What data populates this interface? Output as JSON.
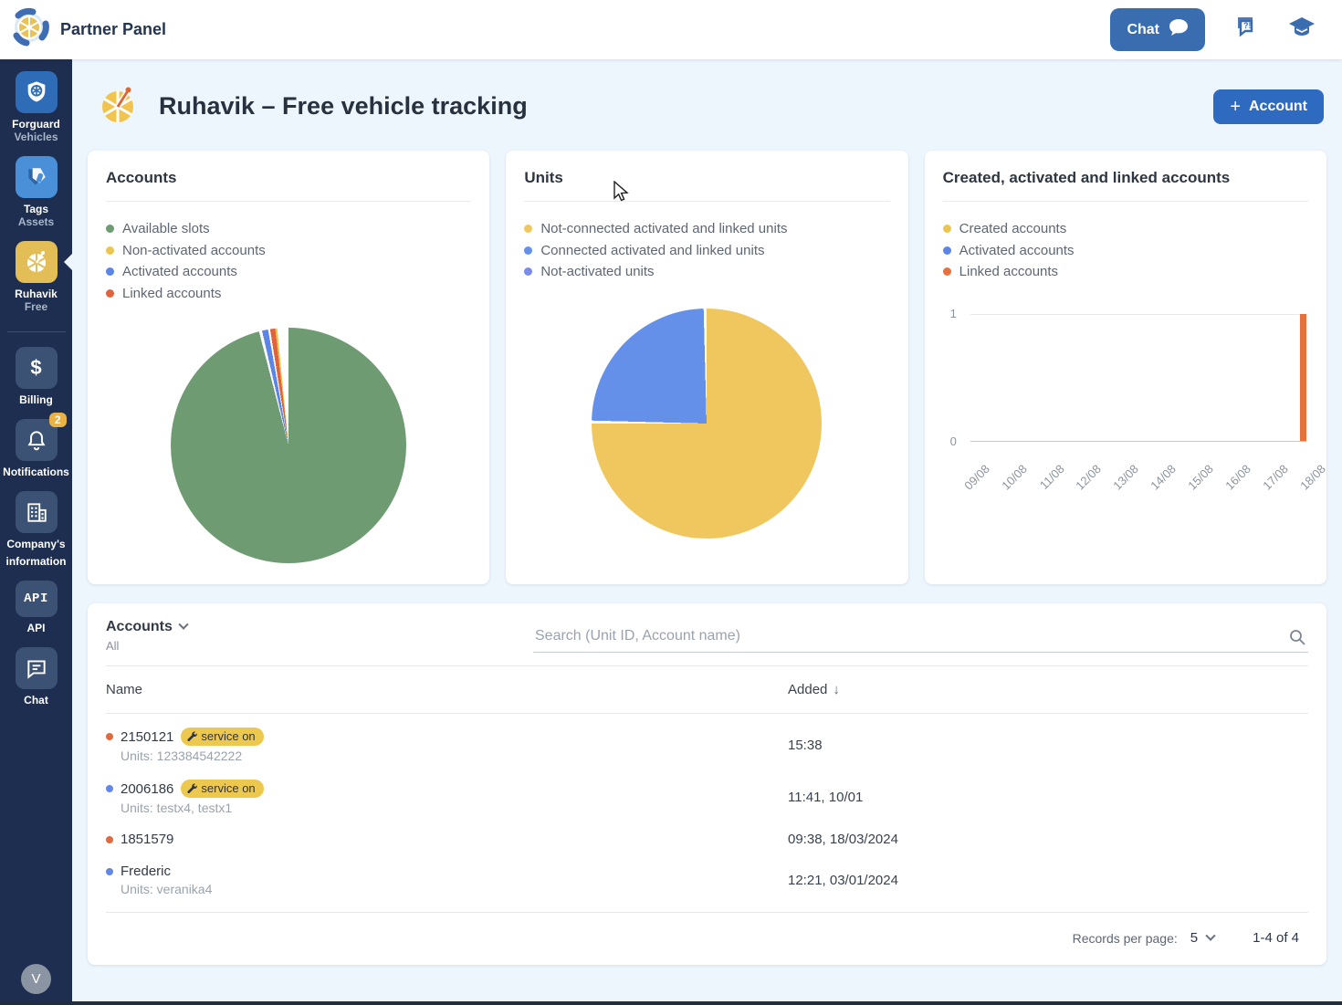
{
  "topbar": {
    "app_title": "Partner Panel",
    "chat_label": "Chat"
  },
  "sidebar": {
    "items": [
      {
        "label1": "Forguard",
        "label2": "Vehicles"
      },
      {
        "label1": "Tags",
        "label2": "Assets"
      },
      {
        "label1": "Ruhavik",
        "label2": "Free",
        "selected": true
      },
      {
        "label1": "Billing"
      },
      {
        "label1": "Notifications",
        "badge": "2"
      },
      {
        "label1": "Company's",
        "label2": "information"
      },
      {
        "label1": "API"
      },
      {
        "label1": "Chat"
      }
    ],
    "avatar_initial": "V"
  },
  "header": {
    "title": "Ruhavik – Free vehicle tracking",
    "account_label": "Account"
  },
  "cards": {
    "accounts": {
      "title": "Accounts",
      "legend": [
        {
          "label": "Available slots",
          "color": "#6f9b72"
        },
        {
          "label": "Non-activated accounts",
          "color": "#ecc550"
        },
        {
          "label": "Activated accounts",
          "color": "#5b86e8"
        },
        {
          "label": "Linked accounts",
          "color": "#e0633d"
        }
      ]
    },
    "units": {
      "title": "Units",
      "legend": [
        {
          "label": "Not-connected activated and linked units",
          "color": "#efc75e"
        },
        {
          "label": "Connected activated and linked units",
          "color": "#6590e9"
        },
        {
          "label": "Not-activated units",
          "color": "#7b8bea"
        }
      ]
    },
    "created": {
      "title": "Created, activated and linked accounts",
      "legend": [
        {
          "label": "Created accounts",
          "color": "#ecc550"
        },
        {
          "label": "Activated accounts",
          "color": "#5b86e8"
        },
        {
          "label": "Linked accounts",
          "color": "#e8703d"
        }
      ]
    }
  },
  "chart_data": [
    {
      "type": "pie",
      "title": "Accounts",
      "slices": [
        {
          "label": "Available slots",
          "color": "#6f9b72",
          "value_pct": 96.5
        },
        {
          "label": "Activated accounts",
          "color": "#5b86e8",
          "value_pct": 1.0
        },
        {
          "label": "Linked accounts",
          "color": "#e0633d",
          "value_pct": 0.8
        },
        {
          "label": "Non-activated accounts",
          "color": "#ecc550",
          "value_pct": 0.3
        }
      ],
      "render_segments": [
        {
          "color": "#6f9b72",
          "from": 0,
          "to": 345.5
        },
        {
          "color": "#ffffff",
          "from": 345.5,
          "to": 347
        },
        {
          "color": "#5b86e8",
          "from": 347,
          "to": 350
        },
        {
          "color": "#ffffff",
          "from": 350,
          "to": 351
        },
        {
          "color": "#e0633d",
          "from": 351,
          "to": 353.5
        },
        {
          "color": "#ecc550",
          "from": 353.5,
          "to": 354.5
        },
        {
          "color": "#ffffff",
          "from": 354.5,
          "to": 360
        }
      ]
    },
    {
      "type": "pie",
      "title": "Units",
      "slices": [
        {
          "label": "Not-connected activated and linked units",
          "color": "#efc75e",
          "value_pct": 75
        },
        {
          "label": "Connected activated and linked units",
          "color": "#6590e9",
          "value_pct": 25
        },
        {
          "label": "Not-activated units",
          "color": "#7b8bea",
          "value_pct": 0
        }
      ],
      "render_segments": [
        {
          "color": "#efc75e",
          "from": 0,
          "to": 270
        },
        {
          "color": "#ffffff",
          "from": 270,
          "to": 271.5
        },
        {
          "color": "#6590e9",
          "from": 271.5,
          "to": 358.5
        },
        {
          "color": "#ffffff",
          "from": 358.5,
          "to": 360
        }
      ]
    },
    {
      "type": "bar",
      "title": "Created, activated and linked accounts",
      "categories": [
        "09/08",
        "10/08",
        "11/08",
        "12/08",
        "13/08",
        "14/08",
        "15/08",
        "16/08",
        "17/08",
        "18/08"
      ],
      "series": [
        {
          "name": "Created accounts",
          "color": "#ecc550",
          "values": [
            0,
            0,
            0,
            0,
            0,
            0,
            0,
            0,
            0,
            0
          ]
        },
        {
          "name": "Activated accounts",
          "color": "#5b86e8",
          "values": [
            0,
            0,
            0,
            0,
            0,
            0,
            0,
            0,
            0,
            0
          ]
        },
        {
          "name": "Linked accounts",
          "color": "#e8703d",
          "values": [
            0,
            0,
            0,
            0,
            0,
            0,
            0,
            0,
            0,
            1
          ]
        }
      ],
      "ylim": [
        0,
        1
      ],
      "yticks": [
        "1",
        "0"
      ],
      "grid": true,
      "legend_position": "top"
    }
  ],
  "table": {
    "filter_label": "Accounts",
    "filter_value": "All",
    "search_placeholder": "Search (Unit ID, Account name)",
    "columns": {
      "name": "Name",
      "added": "Added"
    },
    "sort_arrow": "↓",
    "rows": [
      {
        "name": "2150121",
        "dot_color": "#e0693f",
        "badge": "service on",
        "units": "Units: 123384542222",
        "added": "15:38"
      },
      {
        "name": "2006186",
        "dot_color": "#6287e8",
        "badge": "service on",
        "units": "Units: testx4, testx1",
        "added": "11:41, 10/01"
      },
      {
        "name": "1851579",
        "dot_color": "#e0693f",
        "badge": null,
        "units": null,
        "added": "09:38, 18/03/2024"
      },
      {
        "name": "Frederic",
        "dot_color": "#6287e8",
        "badge": null,
        "units": "Units: veranika4",
        "added": "12:21, 03/01/2024"
      }
    ],
    "footer": {
      "records_label": "Records per page:",
      "records_value": "5",
      "range": "1-4 of 4"
    }
  }
}
